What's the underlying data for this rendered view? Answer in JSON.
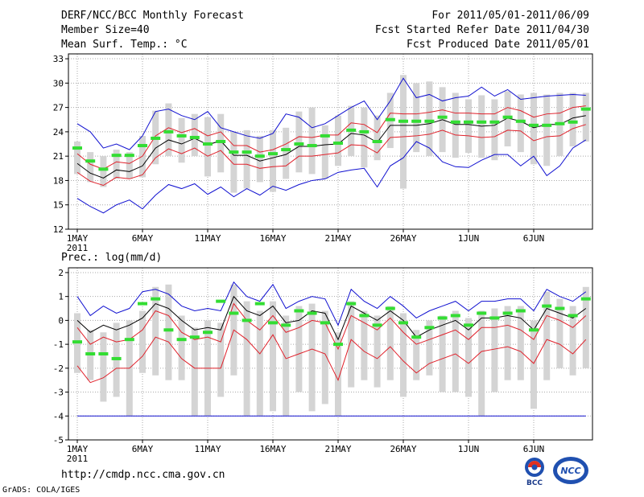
{
  "header": {
    "title": "DERF/NCC/BCC Monthly Forecast",
    "member_size": "Member Size=40",
    "variable": "Mean Surf. Temp.: °C",
    "period": "For 2011/05/01-2011/06/09",
    "fcst_started": "Fcst Started Refer Date 2011/04/30",
    "fcst_produced": "Fcst Produced Date 2011/05/01"
  },
  "footer": {
    "url": "http://cmdp.ncc.cma.gov.cn",
    "credit": "GrADS: COLA/IGES",
    "logo1_text": "BCC",
    "logo2_text": "NCC"
  },
  "colors": {
    "ensemble_mean": "#000000",
    "spread": "#e0202a",
    "envelope": "#1010d0",
    "box": "#d4d4d4",
    "observed": "#33dd33",
    "grid": "#a8a8a8"
  },
  "chart_data": [
    {
      "type": "line",
      "title": "Mean Surf. Temp.: °C",
      "x_tick_labels": [
        "1MAY",
        "6MAY",
        "11MAY",
        "16MAY",
        "21MAY",
        "26MAY",
        "1JUN",
        "6JUN"
      ],
      "x_year_label": "2011",
      "y_ticks": [
        12,
        15,
        18,
        21,
        24,
        27,
        30,
        33
      ],
      "ylim": [
        12,
        33.6
      ],
      "days": [
        1,
        2,
        3,
        4,
        5,
        6,
        7,
        8,
        9,
        10,
        11,
        12,
        13,
        14,
        15,
        16,
        17,
        18,
        19,
        20,
        21,
        22,
        23,
        24,
        25,
        26,
        27,
        28,
        29,
        30,
        31,
        32,
        33,
        34,
        35,
        36,
        37,
        38,
        39,
        40
      ],
      "series": [
        {
          "name": "ensemble mean",
          "role": "mean",
          "values": [
            20.1,
            18.9,
            18.3,
            19.3,
            19.1,
            19.8,
            22.0,
            23.0,
            22.5,
            23.2,
            22.4,
            22.9,
            21.1,
            21.1,
            20.4,
            20.8,
            21.2,
            22.2,
            22.2,
            22.4,
            22.5,
            23.8,
            23.6,
            22.7,
            24.8,
            24.8,
            24.8,
            25.0,
            25.5,
            24.9,
            24.9,
            24.7,
            24.8,
            25.7,
            25.3,
            24.5,
            24.9,
            24.9,
            25.7,
            26.0
          ]
        },
        {
          "name": "upper spread",
          "role": "spread",
          "values": [
            21.3,
            20.0,
            19.4,
            20.3,
            20.1,
            21.0,
            23.5,
            24.5,
            23.9,
            24.4,
            23.5,
            24.0,
            22.3,
            22.3,
            21.5,
            21.8,
            22.5,
            23.4,
            23.3,
            23.6,
            23.6,
            25.1,
            24.9,
            23.9,
            26.3,
            26.2,
            26.2,
            26.4,
            26.7,
            26.3,
            26.3,
            26.2,
            26.2,
            27.0,
            26.6,
            25.8,
            26.2,
            26.3,
            27.0,
            27.2
          ]
        },
        {
          "name": "lower spread",
          "role": "spread",
          "values": [
            19.0,
            17.9,
            17.4,
            18.4,
            18.2,
            18.7,
            20.8,
            21.9,
            21.3,
            22.0,
            21.0,
            21.7,
            20.0,
            20.0,
            19.5,
            19.7,
            19.8,
            21.0,
            21.0,
            21.2,
            21.4,
            22.4,
            22.3,
            21.4,
            23.3,
            23.4,
            23.5,
            23.7,
            24.2,
            23.6,
            23.5,
            23.3,
            23.4,
            24.2,
            24.1,
            22.9,
            23.4,
            23.5,
            24.4,
            24.9
          ]
        },
        {
          "name": "ensemble max",
          "role": "envelope",
          "values": [
            25.0,
            24.0,
            22.0,
            22.5,
            21.8,
            23.5,
            26.5,
            26.8,
            26.0,
            25.5,
            26.5,
            24.5,
            24.0,
            23.5,
            23.2,
            23.8,
            26.2,
            25.8,
            24.5,
            25.0,
            26.0,
            27.0,
            27.8,
            25.5,
            27.8,
            30.6,
            28.2,
            28.6,
            27.8,
            28.2,
            28.4,
            29.5,
            28.4,
            29.2,
            28.0,
            28.2,
            28.4,
            28.5,
            28.6,
            28.5
          ]
        },
        {
          "name": "ensemble min",
          "role": "envelope",
          "values": [
            15.8,
            14.8,
            14.0,
            15.0,
            15.6,
            14.5,
            16.2,
            17.5,
            17.0,
            17.6,
            16.3,
            17.2,
            16.0,
            17.0,
            16.2,
            17.3,
            16.8,
            17.5,
            18.0,
            18.2,
            19.0,
            19.3,
            19.5,
            17.2,
            19.8,
            20.8,
            22.8,
            22.0,
            20.3,
            19.7,
            19.6,
            20.5,
            21.2,
            21.2,
            19.8,
            21.0,
            18.6,
            19.8,
            22.0,
            23.0
          ]
        }
      ],
      "boxes": [
        [
          18.8,
          22.8
        ],
        [
          17.8,
          21.5
        ],
        [
          17.2,
          21.0
        ],
        [
          18.2,
          21.8
        ],
        [
          18.2,
          21.5
        ],
        [
          18.4,
          23.5
        ],
        [
          20.0,
          26.6
        ],
        [
          21.0,
          27.5
        ],
        [
          20.2,
          25.7
        ],
        [
          21.0,
          26.2
        ],
        [
          18.5,
          25.8
        ],
        [
          19.0,
          26.2
        ],
        [
          16.5,
          24.0
        ],
        [
          17.0,
          24.2
        ],
        [
          17.8,
          23.5
        ],
        [
          16.6,
          24.2
        ],
        [
          18.2,
          24.5
        ],
        [
          19.0,
          26.5
        ],
        [
          18.8,
          27.0
        ],
        [
          18.2,
          24.8
        ],
        [
          19.8,
          26.0
        ],
        [
          21.0,
          27.2
        ],
        [
          19.6,
          27.0
        ],
        [
          20.5,
          26.0
        ],
        [
          22.0,
          28.8
        ],
        [
          17.0,
          31.0
        ],
        [
          21.5,
          30.0
        ],
        [
          21.0,
          30.2
        ],
        [
          21.5,
          29.5
        ],
        [
          20.8,
          28.8
        ],
        [
          21.4,
          28.0
        ],
        [
          20.8,
          28.5
        ],
        [
          20.5,
          28.0
        ],
        [
          22.2,
          29.0
        ],
        [
          21.5,
          28.6
        ],
        [
          20.0,
          28.8
        ],
        [
          19.8,
          28.6
        ],
        [
          21.0,
          28.8
        ],
        [
          22.2,
          28.8
        ],
        [
          22.8,
          28.8
        ]
      ],
      "observed": [
        22.0,
        20.4,
        19.4,
        21.1,
        21.1,
        22.3,
        23.2,
        24.0,
        23.5,
        23.3,
        22.5,
        22.8,
        21.5,
        21.5,
        21.0,
        21.3,
        21.8,
        22.5,
        22.3,
        23.5,
        22.6,
        24.2,
        24.0,
        22.8,
        25.5,
        25.3,
        25.3,
        25.3,
        25.8,
        25.2,
        25.2,
        25.2,
        25.2,
        25.8,
        25.3,
        24.8,
        24.8,
        25.0,
        25.2,
        26.8
      ]
    },
    {
      "type": "line",
      "title": "Prec.: log(mm/d)",
      "x_tick_labels": [
        "1MAY",
        "6MAY",
        "11MAY",
        "16MAY",
        "21MAY",
        "26MAY",
        "1JUN",
        "6JUN"
      ],
      "x_year_label": "2011",
      "y_ticks": [
        -5,
        -4,
        -3,
        -2,
        -1,
        0,
        1,
        2
      ],
      "ylim": [
        -5,
        2.2
      ],
      "days": [
        1,
        2,
        3,
        4,
        5,
        6,
        7,
        8,
        9,
        10,
        11,
        12,
        13,
        14,
        15,
        16,
        17,
        18,
        19,
        20,
        21,
        22,
        23,
        24,
        25,
        26,
        27,
        28,
        29,
        30,
        31,
        32,
        33,
        34,
        35,
        36,
        37,
        38,
        39,
        40
      ],
      "series": [
        {
          "name": "ensemble mean",
          "role": "mean",
          "values": [
            0.0,
            -0.5,
            -0.2,
            -0.4,
            -0.2,
            0.1,
            0.7,
            0.5,
            0.0,
            -0.4,
            -0.3,
            -0.4,
            1.0,
            0.4,
            0.2,
            0.6,
            -0.1,
            0.0,
            0.4,
            0.3,
            -0.8,
            0.6,
            0.3,
            0.0,
            0.4,
            0.0,
            -0.7,
            -0.4,
            -0.2,
            0.0,
            -0.4,
            0.1,
            0.1,
            0.2,
            0.1,
            -0.4,
            0.5,
            0.3,
            0.1,
            0.5
          ]
        },
        {
          "name": "upper spread",
          "role": "spread",
          "values": [
            -0.3,
            -1.0,
            -0.7,
            -0.9,
            -0.8,
            -0.4,
            0.4,
            0.2,
            -0.5,
            -0.8,
            -0.7,
            -0.9,
            0.7,
            0.0,
            -0.4,
            0.2,
            -0.5,
            -0.3,
            0.0,
            -0.1,
            -1.2,
            0.2,
            -0.1,
            -0.4,
            0.1,
            -0.5,
            -1.0,
            -0.8,
            -0.6,
            -0.4,
            -0.8,
            -0.3,
            -0.3,
            -0.2,
            -0.4,
            -0.8,
            0.2,
            0.0,
            -0.3,
            0.2
          ]
        },
        {
          "name": "lower spread",
          "role": "spread",
          "values": [
            -1.9,
            -2.6,
            -2.4,
            -2.0,
            -2.0,
            -1.5,
            -0.7,
            -0.9,
            -1.6,
            -2.0,
            -2.0,
            -2.0,
            -0.4,
            -0.8,
            -1.4,
            -0.6,
            -1.6,
            -1.4,
            -1.2,
            -1.4,
            -2.5,
            -0.8,
            -1.3,
            -1.6,
            -1.1,
            -1.7,
            -2.2,
            -1.8,
            -1.6,
            -1.4,
            -1.8,
            -1.3,
            -1.2,
            -1.1,
            -1.3,
            -1.8,
            -0.8,
            -1.0,
            -1.4,
            -0.8
          ]
        },
        {
          "name": "ensemble max",
          "role": "envelope",
          "values": [
            1.0,
            0.2,
            0.6,
            0.3,
            0.5,
            1.2,
            1.3,
            1.1,
            0.6,
            0.4,
            0.5,
            0.4,
            1.6,
            1.0,
            0.8,
            1.5,
            0.5,
            0.8,
            1.0,
            0.9,
            -0.2,
            1.3,
            0.8,
            0.5,
            1.0,
            0.6,
            0.1,
            0.4,
            0.6,
            0.8,
            0.4,
            0.8,
            0.8,
            0.9,
            0.9,
            0.4,
            1.3,
            1.0,
            0.8,
            1.2
          ]
        },
        {
          "name": "ensemble min",
          "role": "envelope",
          "values": [
            -4.0,
            -4.0,
            -4.0,
            -4.0,
            -4.0,
            -4.0,
            -4.0,
            -4.0,
            -4.0,
            -4.0,
            -4.0,
            -4.0,
            -4.0,
            -4.0,
            -4.0,
            -4.0,
            -4.0,
            -4.0,
            -4.0,
            -4.0,
            -4.0,
            -4.0,
            -4.0,
            -4.0,
            -4.0,
            -4.0,
            -4.0,
            -4.0,
            -4.0,
            -4.0,
            -4.0,
            -4.0,
            -4.0,
            -4.0,
            -4.0,
            -4.0,
            -4.0,
            -4.0,
            -4.0,
            -4.0
          ]
        }
      ],
      "boxes": [
        [
          -2.2,
          0.3
        ],
        [
          -2.5,
          -0.4
        ],
        [
          -3.4,
          -0.5
        ],
        [
          -3.2,
          -0.1
        ],
        [
          -4.0,
          0.0
        ],
        [
          -2.2,
          0.4
        ],
        [
          -2.3,
          1.4
        ],
        [
          -2.5,
          1.5
        ],
        [
          -2.5,
          0.2
        ],
        [
          -4.0,
          -0.3
        ],
        [
          -4.0,
          0.0
        ],
        [
          -3.2,
          -0.1
        ],
        [
          -2.3,
          1.5
        ],
        [
          -4.0,
          0.8
        ],
        [
          -4.0,
          0.4
        ],
        [
          -3.8,
          0.8
        ],
        [
          -4.0,
          0.2
        ],
        [
          -3.0,
          0.6
        ],
        [
          -3.8,
          0.7
        ],
        [
          -3.5,
          0.4
        ],
        [
          -4.0,
          -0.5
        ],
        [
          -2.8,
          0.8
        ],
        [
          -2.5,
          0.4
        ],
        [
          -2.8,
          0.2
        ],
        [
          -2.5,
          0.6
        ],
        [
          -3.2,
          0.3
        ],
        [
          -2.5,
          -0.4
        ],
        [
          -2.3,
          0.0
        ],
        [
          -3.0,
          0.2
        ],
        [
          -3.0,
          0.4
        ],
        [
          -3.2,
          0.1
        ],
        [
          -4.0,
          0.4
        ],
        [
          -3.0,
          0.5
        ],
        [
          -2.5,
          0.6
        ],
        [
          -2.5,
          0.6
        ],
        [
          -3.7,
          0.0
        ],
        [
          -2.5,
          1.2
        ],
        [
          -2.0,
          0.9
        ],
        [
          -2.3,
          0.6
        ],
        [
          -2.0,
          1.4
        ]
      ],
      "observed": [
        -0.9,
        -1.4,
        -1.4,
        -1.6,
        -0.8,
        0.7,
        0.9,
        -0.4,
        -0.8,
        -0.7,
        -0.5,
        0.8,
        0.3,
        0.0,
        0.7,
        -0.1,
        -0.2,
        0.4,
        0.3,
        -0.1,
        -1.0,
        0.7,
        0.2,
        -0.2,
        0.5,
        -0.1,
        -0.7,
        -0.3,
        0.1,
        0.2,
        -0.2,
        0.3,
        0.1,
        0.3,
        0.4,
        -0.4,
        0.6,
        0.5,
        0.2,
        0.9
      ]
    }
  ]
}
